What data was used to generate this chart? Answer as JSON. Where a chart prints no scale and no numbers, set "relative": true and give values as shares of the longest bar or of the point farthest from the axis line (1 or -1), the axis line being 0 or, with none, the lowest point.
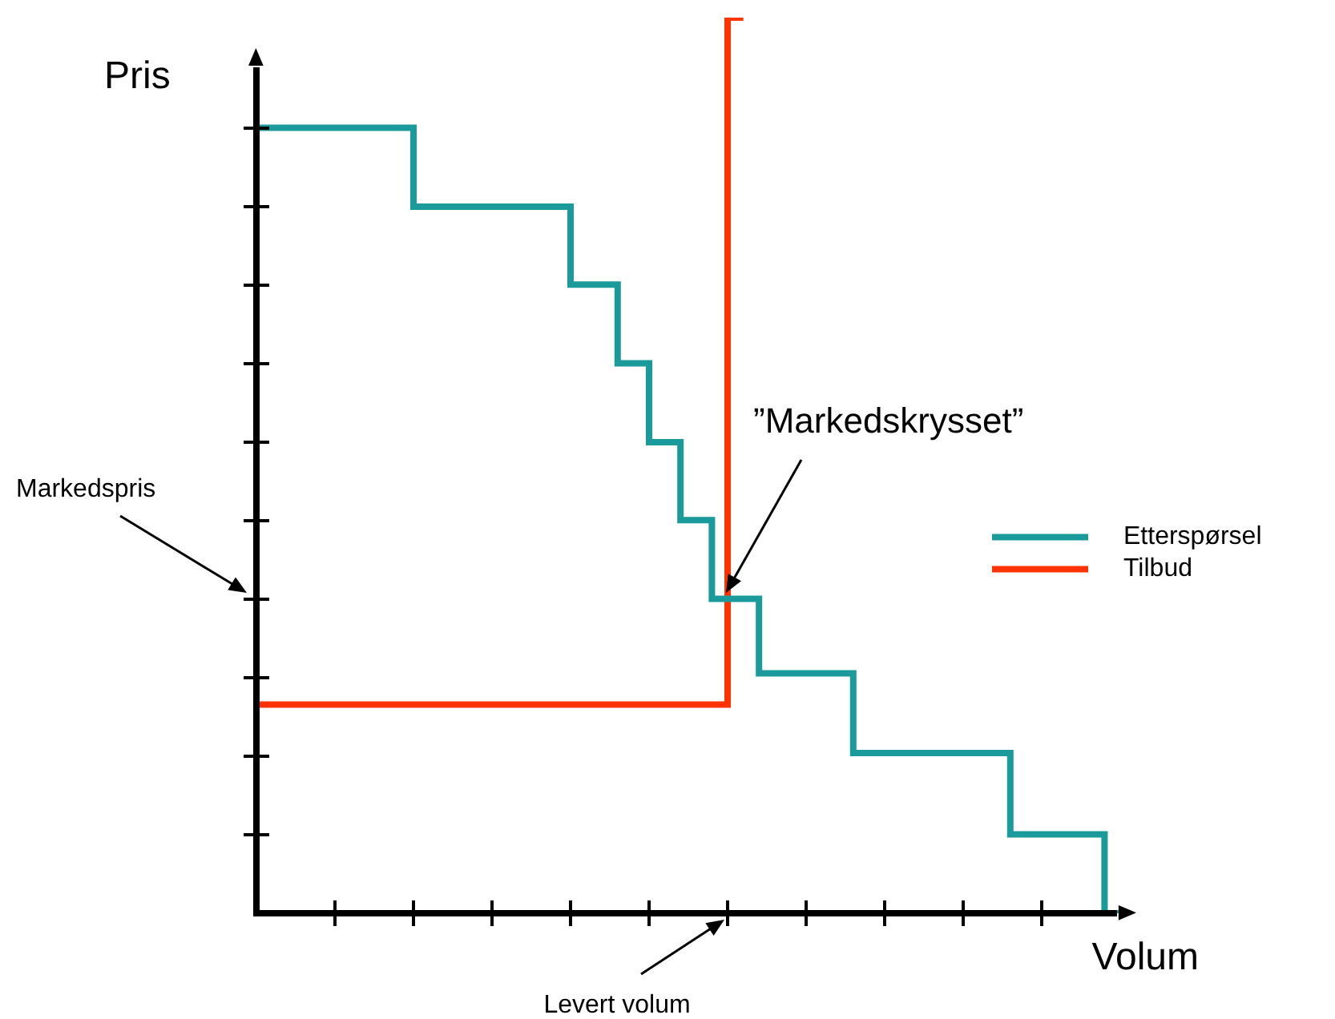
{
  "chart_data": {
    "type": "step",
    "relative": true,
    "ylabel": "Pris",
    "xlabel": "Volum",
    "categories": [
      null,
      null,
      null,
      null,
      null,
      null,
      null,
      null,
      null,
      null,
      null,
      null,
      null,
      null,
      null,
      null,
      null,
      null,
      null,
      null,
      null,
      null,
      null,
      null,
      null,
      null,
      null,
      null,
      null,
      null,
      null,
      null,
      null,
      null,
      null,
      null,
      null,
      null,
      null,
      null,
      null,
      null,
      null,
      null,
      null,
      null,
      null,
      null,
      null,
      null,
      null,
      null,
      null,
      null,
      null,
      null
    ],
    "series": [
      {
        "name": "Etterspørsel",
        "color": "#1a9a9a",
        "values": [
          0.877,
          0.877,
          0.877,
          0.877,
          0.877,
          0.877,
          0.877,
          0.877,
          0.877,
          0.877,
          0.877,
          0.789,
          0.789,
          0.789,
          0.789,
          0.789,
          0.789,
          0.789,
          0.789,
          0.789,
          0.789,
          0.702,
          0.702,
          0.702,
          0.614,
          0.614,
          0.526,
          0.526,
          0.439,
          0.439,
          0.351,
          0.351,
          0.351,
          0.268,
          0.268,
          0.268,
          0.268,
          0.268,
          0.268,
          0.179,
          0.179,
          0.179,
          0.179,
          0.179,
          0.179,
          0.179,
          0.179,
          0.179,
          0.179,
          0.088,
          0.088,
          0.088,
          0.088,
          0.088,
          0.088,
          0
        ]
      },
      {
        "name": "Tilbud",
        "color": "#ff3300",
        "values": [
          0.233,
          0.233,
          0.233,
          0.233,
          0.233,
          0.233,
          0.233,
          0.233,
          0.233,
          0.233,
          0.233,
          0.233,
          0.233,
          0.233,
          0.233,
          0.233,
          0.233,
          0.233,
          0.233,
          0.233,
          0.233,
          0.233,
          0.233,
          0.233,
          0.233,
          0.233,
          0.233,
          0.233,
          0.233,
          0.233,
          0.233,
          1,
          null,
          null,
          null,
          null,
          null,
          null,
          null,
          null,
          null,
          null,
          null,
          null,
          null,
          null,
          null,
          null,
          null,
          null,
          null,
          null,
          null,
          null,
          null,
          null
        ]
      }
    ],
    "legend": "right",
    "annotations": [
      "”Markedskrysset”",
      "Markedspris",
      "Levert volum"
    ]
  }
}
